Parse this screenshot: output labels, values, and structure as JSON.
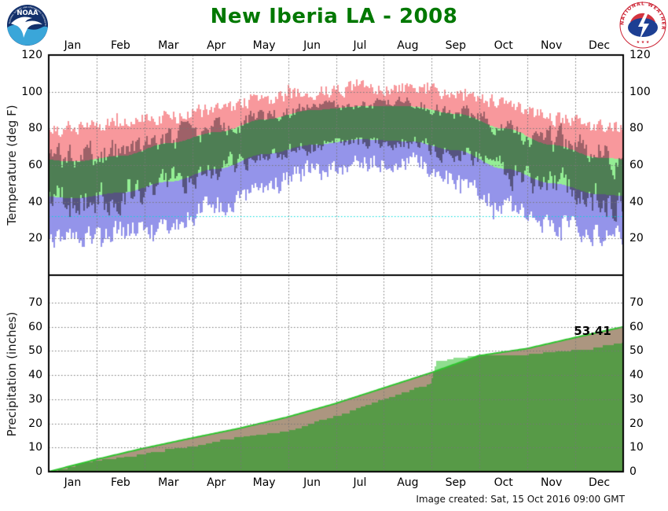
{
  "header": {
    "title": "New Iberia LA - 2008",
    "title_color": "#007800"
  },
  "footer": {
    "created": "Image created: Sat, 15 Oct 2016 09:00 GMT"
  },
  "logos": {
    "noaa": {
      "name": "NOAA logo",
      "center_text": "NOAA",
      "ring_text_top": "NATIONAL OCEANIC AND ATMOSPHERIC ADMINISTRATION",
      "ring_text_bottom": "U.S. DEPARTMENT OF COMMERCE"
    },
    "nws": {
      "name": "National Weather Service logo",
      "ring_text": "NATIONAL WEATHER SERVICE"
    }
  },
  "months": [
    "Jan",
    "Feb",
    "Mar",
    "Apr",
    "May",
    "Jun",
    "Jul",
    "Aug",
    "Sep",
    "Oct",
    "Nov",
    "Dec"
  ],
  "colors": {
    "record_high_band": "#F8989C",
    "normal_band": "#94EE94",
    "record_low_band": "#9494EA",
    "observed_over_pink": "#9E6168",
    "observed_over_green": "#4E7E54",
    "observed_over_blue": "#565480",
    "normal_precip_fill": "#AC9680",
    "normal_precip_line": "#2FC52F",
    "actual_precip_fill": "#579A47",
    "actual_above_normal_fill": "#8FDE8F",
    "gridline": "#777777",
    "freezing_line": "#00DDDD",
    "border": "#000000",
    "title": "#007800"
  },
  "chart_data": [
    {
      "type": "area",
      "panel": "temperature",
      "description": "Daily temperature bands: record range (pink/blue), normal range (green), observed daily high-low as dark translucent bars",
      "ylabel": "Temperature (deg F)",
      "yticks": [
        20,
        40,
        60,
        80,
        100,
        120
      ],
      "ylim": [
        0,
        120
      ],
      "freezing_line": 32,
      "grid": true,
      "xticklabels_position": "top",
      "series": [
        {
          "name": "record_high_monthly",
          "values": [
            80,
            83,
            86,
            90,
            96,
            100,
            102,
            102,
            99,
            94,
            86,
            81
          ]
        },
        {
          "name": "normal_high_monthly",
          "values": [
            62,
            65,
            72,
            78,
            85,
            90,
            92,
            92,
            88,
            80,
            71,
            64
          ]
        },
        {
          "name": "normal_low_monthly",
          "values": [
            42,
            45,
            51,
            58,
            66,
            71,
            74,
            73,
            68,
            58,
            50,
            44
          ]
        },
        {
          "name": "record_low_monthly",
          "values": [
            20,
            24,
            28,
            38,
            47,
            57,
            62,
            62,
            52,
            38,
            28,
            22
          ]
        }
      ],
      "noise": {
        "seed": 20080101,
        "record_jitter_deg": 3,
        "observed_winter_spread_deg": 14,
        "observed_summer_spread_deg": 5
      }
    },
    {
      "type": "area",
      "panel": "precipitation",
      "description": "Accumulated precipitation: actual (green, light green where above normal) vs normal (brown fill with bright green line)",
      "ylabel": "Precipitation (inches)",
      "yticks": [
        0,
        10,
        20,
        30,
        40,
        50,
        60,
        70
      ],
      "ylim": [
        0,
        81.4
      ],
      "grid": true,
      "xticklabels_position": "bottom",
      "annotation": {
        "text": "53.41",
        "value": 53.41,
        "meaning": "year-end actual accumulated precipitation (inches)"
      },
      "normal_cumulative": {
        "days": [
          0,
          31,
          59,
          90,
          120,
          151,
          181,
          212,
          243,
          273,
          304,
          334,
          365
        ],
        "values": [
          0,
          5.2,
          9.5,
          13.8,
          17.8,
          22.5,
          28.0,
          34.5,
          41.0,
          48.0,
          51.0,
          55.5,
          60.0
        ]
      },
      "actual_cumulative": {
        "days": [
          0,
          10,
          20,
          31,
          41,
          51,
          59,
          69,
          79,
          90,
          100,
          110,
          120,
          130,
          140,
          151,
          161,
          171,
          181,
          191,
          201,
          212,
          222,
          232,
          243,
          247,
          257,
          273,
          283,
          293,
          304,
          314,
          324,
          334,
          344,
          354,
          365
        ],
        "values": [
          0,
          1.5,
          3.5,
          4.9,
          5.5,
          6.5,
          7.2,
          8.5,
          9.8,
          10.4,
          11.5,
          13.5,
          14.3,
          15.2,
          16.0,
          16.9,
          18.5,
          21.0,
          22.8,
          25.0,
          27.5,
          30.0,
          32.0,
          34.5,
          36.5,
          46.0,
          47.0,
          48.2,
          48.4,
          48.6,
          48.9,
          49.3,
          50.0,
          50.5,
          51.0,
          52.5,
          53.41
        ]
      }
    }
  ]
}
